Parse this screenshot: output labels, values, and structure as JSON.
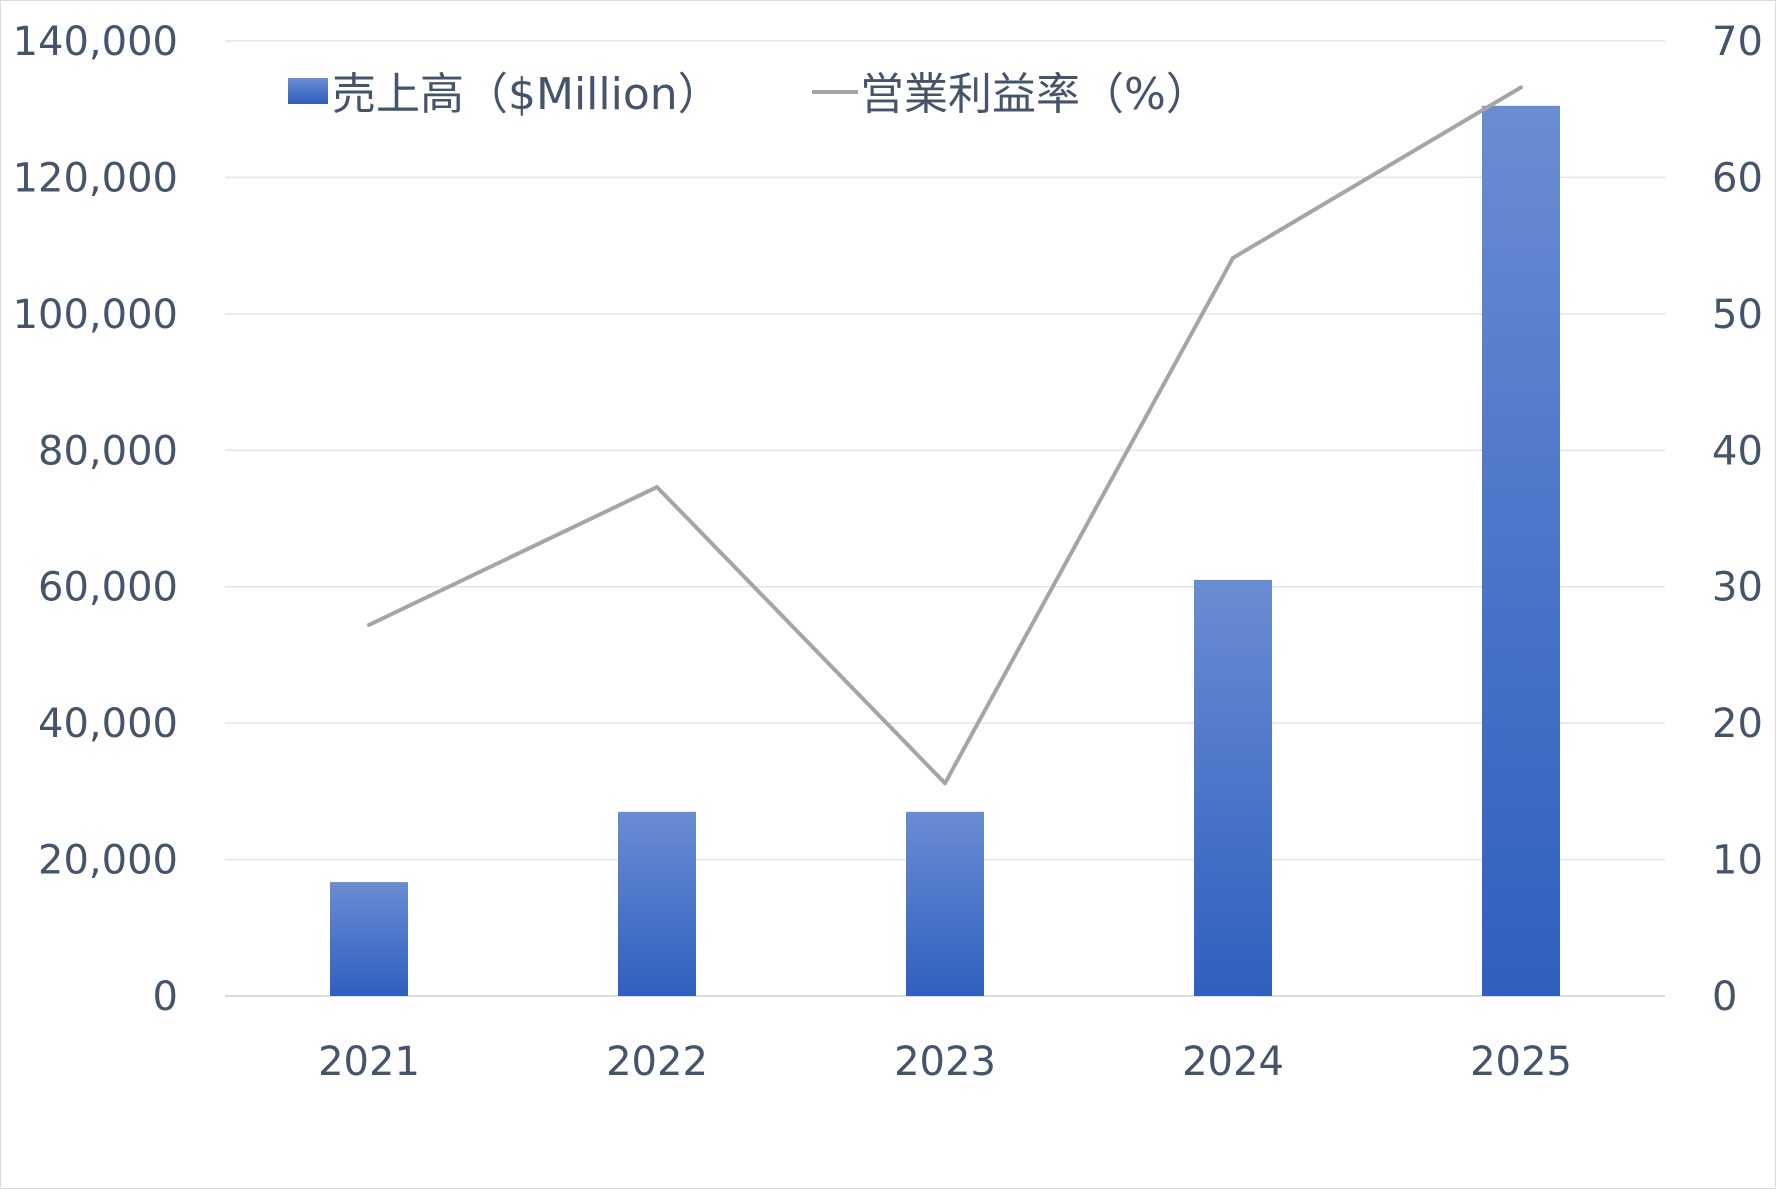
{
  "chart_data": {
    "type": "bar",
    "categories": [
      "2021",
      "2022",
      "2023",
      "2024",
      "2025"
    ],
    "series": [
      {
        "name": "売上高（$Million）",
        "type": "bar",
        "axis": "left",
        "values": [
          16700,
          27000,
          27000,
          61000,
          130500
        ],
        "color": "#4472c4"
      },
      {
        "name": "営業利益率（%）",
        "type": "line",
        "axis": "right",
        "values": [
          27.2,
          37.3,
          15.6,
          54.1,
          66.6
        ],
        "color": "#a5a5a5"
      }
    ],
    "y_left": {
      "ylim": [
        0,
        140000
      ],
      "ticks": [
        "0",
        "20,000",
        "40,000",
        "60,000",
        "80,000",
        "100,000",
        "120,000",
        "140,000"
      ]
    },
    "y_right": {
      "ylim": [
        0,
        70
      ],
      "ticks": [
        "0",
        "10",
        "20",
        "30",
        "40",
        "50",
        "60",
        "70"
      ]
    },
    "grid": true,
    "legend_position": "top-left"
  }
}
